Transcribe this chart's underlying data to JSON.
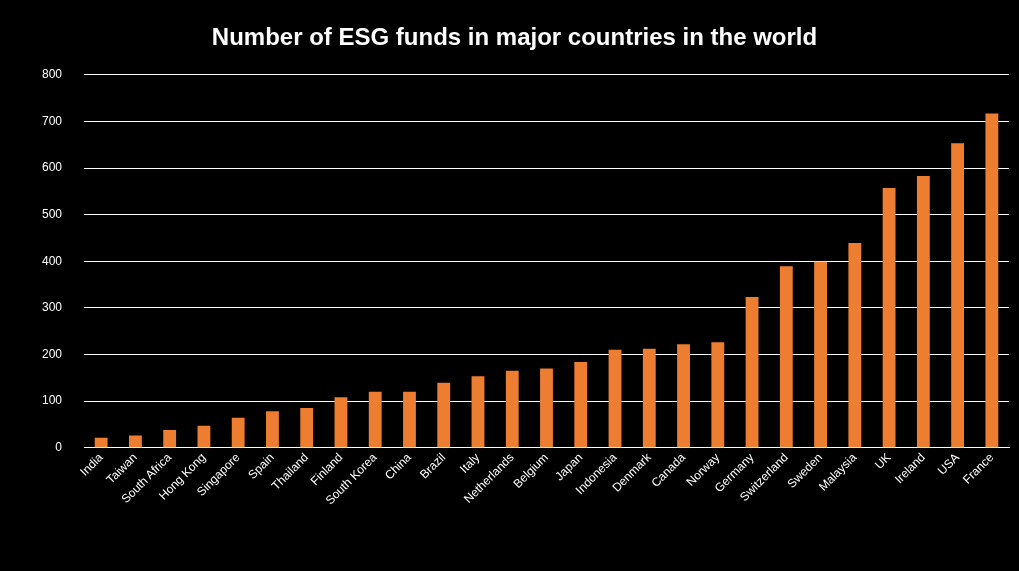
{
  "chart_data": {
    "type": "bar",
    "title": "Number of ESG funds in major countries in the world",
    "categories": [
      "India",
      "Taiwan",
      "South Africa",
      "Hong Kong",
      "Singapore",
      "Spain",
      "Thailand",
      "Finland",
      "South Korea",
      "China",
      "Brazil",
      "Italy",
      "Netherlands",
      "Belgium",
      "Japan",
      "Indonesia",
      "Denmark",
      "Canada",
      "Norway",
      "Germany",
      "Switzerland",
      "Sweden",
      "Malaysia",
      "UK",
      "Ireland",
      "USA",
      "France"
    ],
    "values": [
      21,
      26,
      38,
      47,
      64,
      78,
      85,
      108,
      120,
      120,
      139,
      153,
      165,
      170,
      184,
      210,
      212,
      222,
      226,
      323,
      389,
      399,
      439,
      557,
      583,
      653,
      717
    ],
    "color": "#ed7d31",
    "ylim": [
      0,
      800
    ],
    "yticks": [
      0,
      100,
      200,
      300,
      400,
      500,
      600,
      700,
      800
    ],
    "grid": "y",
    "legend": false
  }
}
